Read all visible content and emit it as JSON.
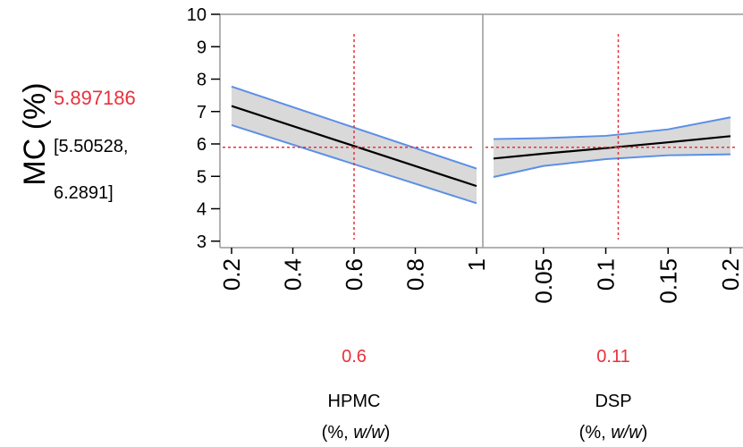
{
  "chart_data": {
    "type": "line",
    "response": {
      "label": "MC (%)",
      "predicted": "5.897186",
      "ci_line1": "[5.50528,",
      "ci_line2": "6.2891]",
      "predicted_value": 5.897186,
      "ci": [
        5.50528,
        6.2891
      ],
      "ylim": [
        2.8,
        10
      ],
      "yticks": [
        3,
        4,
        5,
        6,
        7,
        8,
        9,
        10
      ]
    },
    "panels": [
      {
        "factor": "HPMC",
        "unit_prefix": "(%, ",
        "unit_italic": "w/w",
        "unit_suffix": ")",
        "current_label": "0.6",
        "current": 0.6,
        "xlim": [
          0.2,
          1.0
        ],
        "xticks": [
          0.2,
          0.4,
          0.6,
          0.8,
          1.0
        ],
        "xtick_labels": [
          "0.2",
          "0.4",
          "0.6",
          "0.8",
          "1"
        ],
        "x": [
          0.2,
          1.0
        ],
        "y": [
          7.17,
          4.7
        ],
        "lower": [
          6.58,
          4.17
        ],
        "upper": [
          7.77,
          5.24
        ]
      },
      {
        "factor": "DSP",
        "unit_prefix": "(%, ",
        "unit_italic": "w/w",
        "unit_suffix": ")",
        "current_label": "0.11",
        "current": 0.11,
        "xlim": [
          0.01,
          0.2
        ],
        "xticks": [
          0.05,
          0.1,
          0.15,
          0.2
        ],
        "xtick_labels": [
          "0.05",
          "0.1",
          "0.15",
          "0.2"
        ],
        "x": [
          0.01,
          0.05,
          0.1,
          0.15,
          0.2
        ],
        "y": [
          5.55,
          5.7,
          5.87,
          6.05,
          6.24
        ],
        "lower": [
          4.98,
          5.32,
          5.53,
          5.65,
          5.68
        ],
        "upper": [
          6.15,
          6.18,
          6.25,
          6.45,
          6.82
        ]
      }
    ],
    "colors": {
      "fit": "#000000",
      "ci_band": "#d9d9d9",
      "ci_line": "#5b8fe6",
      "crosshair": "#e8323c",
      "frame": "#999999"
    }
  }
}
